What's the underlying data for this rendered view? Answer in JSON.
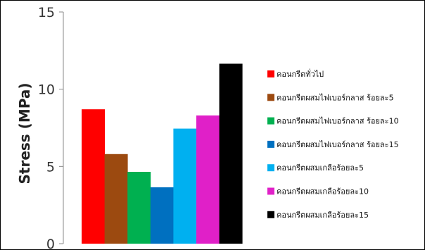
{
  "chart_data": {
    "type": "bar",
    "title": "",
    "xlabel": "",
    "ylabel": "Stress (MPa)",
    "ylim": [
      0,
      15
    ],
    "yticks": [
      0,
      5,
      10,
      15
    ],
    "grid": false,
    "legend_position": "right",
    "series": [
      {
        "name": "คอนกรีตทั่วไป",
        "value": 8.7,
        "color": "#ff0000"
      },
      {
        "name": "คอนกรีตผสมไฟเบอร์กลาส ร้อยละ5",
        "value": 5.8,
        "color": "#9c4a10"
      },
      {
        "name": "คอนกรีตผสมไฟเบอร์กลาส ร้อยละ10",
        "value": 4.65,
        "color": "#00b050"
      },
      {
        "name": "คอนกรีตผสมไฟเบอร์กลาส ร้อยละ15",
        "value": 3.65,
        "color": "#0070c0"
      },
      {
        "name": "คอนกรีตผสมเกลือร้อยละ5",
        "value": 7.45,
        "color": "#00b0f0"
      },
      {
        "name": "คอนกรีตผสมเกลือร้อยละ10",
        "value": 8.3,
        "color": "#e020c8"
      },
      {
        "name": "คอนกรีตผสมเกลือร้อยละ15",
        "value": 11.65,
        "color": "#000000"
      }
    ]
  }
}
